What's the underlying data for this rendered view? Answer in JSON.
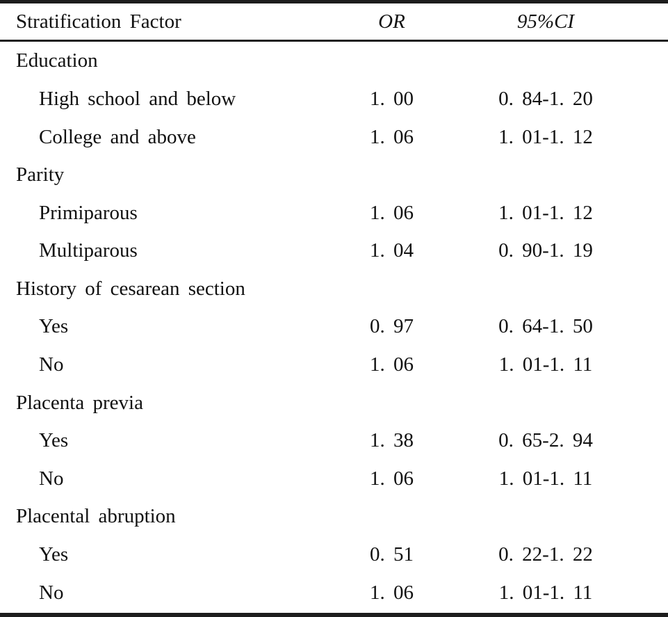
{
  "page": {
    "background": "#ffffff",
    "rule_color": "#1d1d1d",
    "text_color": "#111111"
  },
  "table": {
    "columns": [
      {
        "label": "Stratification Factor",
        "italic": false
      },
      {
        "label": "OR",
        "italic": true
      },
      {
        "label": "95%CI",
        "italic": true
      }
    ],
    "rows": [
      {
        "label": "Education",
        "indent": false,
        "or": "",
        "ci": ""
      },
      {
        "label": "High school and below",
        "indent": true,
        "or": "1. 00",
        "ci": "0. 84-1. 20"
      },
      {
        "label": "College and above",
        "indent": true,
        "or": "1. 06",
        "ci": "1. 01-1. 12"
      },
      {
        "label": "Parity",
        "indent": false,
        "or": "",
        "ci": ""
      },
      {
        "label": "Primiparous",
        "indent": true,
        "or": "1. 06",
        "ci": "1. 01-1. 12"
      },
      {
        "label": "Multiparous",
        "indent": true,
        "or": "1. 04",
        "ci": "0. 90-1. 19"
      },
      {
        "label": "History of cesarean section",
        "indent": false,
        "or": "",
        "ci": ""
      },
      {
        "label": "Yes",
        "indent": true,
        "or": "0. 97",
        "ci": "0. 64-1. 50"
      },
      {
        "label": "No",
        "indent": true,
        "or": "1. 06",
        "ci": "1. 01-1. 11"
      },
      {
        "label": "Placenta previa",
        "indent": false,
        "or": "",
        "ci": ""
      },
      {
        "label": "Yes",
        "indent": true,
        "or": "1. 38",
        "ci": "0. 65-2. 94"
      },
      {
        "label": "No",
        "indent": true,
        "or": "1. 06",
        "ci": "1. 01-1. 11"
      },
      {
        "label": "Placental abruption",
        "indent": false,
        "or": "",
        "ci": ""
      },
      {
        "label": "Yes",
        "indent": true,
        "or": "0. 51",
        "ci": "0. 22-1. 22"
      },
      {
        "label": "No",
        "indent": true,
        "or": "1. 06",
        "ci": "1. 01-1. 11"
      }
    ]
  }
}
